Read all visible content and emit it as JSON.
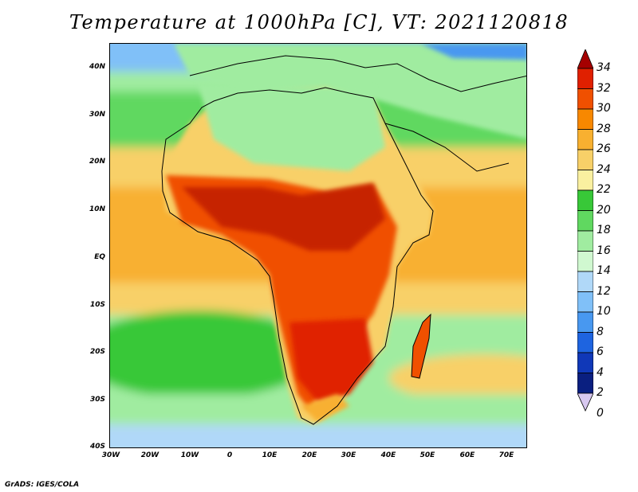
{
  "title": "Temperature at 1000hPa [C], VT: 2021120818",
  "credit": "GrADS: IGES/COLA",
  "lat_labels": [
    "40N",
    "30N",
    "20N",
    "10N",
    "EQ",
    "10S",
    "20S",
    "30S",
    "40S"
  ],
  "lon_labels": [
    "30W",
    "20W",
    "10W",
    "0",
    "10E",
    "20E",
    "30E",
    "40E",
    "50E",
    "60E",
    "70E"
  ],
  "colorbar": {
    "labels": [
      "34",
      "32",
      "30",
      "28",
      "26",
      "24",
      "22",
      "20",
      "18",
      "16",
      "14",
      "12",
      "10",
      "8",
      "6",
      "4",
      "2",
      "0"
    ],
    "colors": [
      "#a50000",
      "#e02000",
      "#f05000",
      "#f88800",
      "#f8b030",
      "#f8d068",
      "#faf0a0",
      "#38c838",
      "#60d860",
      "#a0eca0",
      "#d0f8d0",
      "#b0d8f8",
      "#80c0f8",
      "#4898f0",
      "#1e64e0",
      "#1038b8",
      "#0a1f80",
      "#d8c8f0"
    ]
  }
}
